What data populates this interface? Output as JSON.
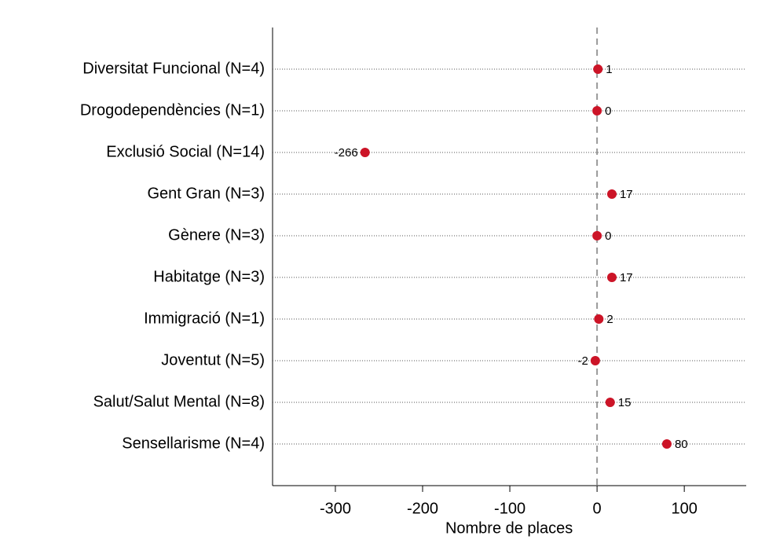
{
  "chart_data": {
    "type": "dot",
    "categories": [
      "Diversitat Funcional (N=4)",
      "Drogodependències (N=1)",
      "Exclusió Social (N=14)",
      "Gent Gran (N=3)",
      "Gènere (N=3)",
      "Habitatge (N=3)",
      "Immigració (N=1)",
      "Joventut (N=5)",
      "Salut/Salut Mental (N=8)",
      "Sensellarisme (N=4)"
    ],
    "values": [
      1,
      0,
      -266,
      17,
      0,
      17,
      2,
      -2,
      15,
      80
    ],
    "color": "#cc1427",
    "xlabel": "Nombre de places",
    "xlim": [
      -372,
      171
    ],
    "xticks": [
      -300,
      -200,
      -100,
      0,
      100
    ],
    "reference_line": 0,
    "grid": true
  }
}
